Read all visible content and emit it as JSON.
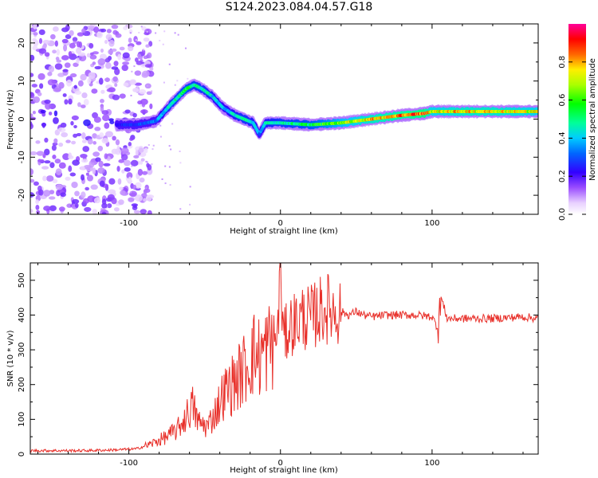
{
  "title": "S124.2023.084.04.57.G18",
  "colors": {
    "snr_line": "#e8302a",
    "axis": "#000000",
    "background": "#ffffff"
  },
  "chart_data": [
    {
      "type": "heatmap",
      "xlabel": "Height of straight line (km)",
      "ylabel": "Frequency (Hz)",
      "xlim": [
        -165,
        170
      ],
      "ylim": [
        -25,
        25
      ],
      "xticks": [
        -100,
        0,
        100
      ],
      "yticks": [
        -20,
        -10,
        0,
        10,
        20
      ],
      "colorbar": {
        "label": "Normalized spectral amplitude",
        "range": [
          0,
          1
        ],
        "ticks": [
          0.0,
          0.2,
          0.4,
          0.6,
          0.8
        ],
        "colormap": "rainbow (white-violet-blue-cyan-green-yellow-red-magenta)"
      },
      "ridge": {
        "description": "dominant Doppler trace",
        "x": [
          -108,
          -95,
          -82,
          -72,
          -62,
          -57,
          -52,
          -45,
          -38,
          -30,
          -24,
          -18,
          -14,
          -10,
          0,
          20,
          40,
          60,
          80,
          95,
          100,
          120,
          140,
          170
        ],
        "y": [
          -1.5,
          -1.5,
          -0.5,
          4,
          8,
          9,
          8,
          6,
          3,
          1,
          0,
          -1,
          -4,
          -1,
          -1,
          -1.5,
          -1,
          0,
          1,
          1.5,
          2,
          2,
          2,
          2
        ],
        "amplitude": [
          0.25,
          0.3,
          0.35,
          0.5,
          0.55,
          0.5,
          0.5,
          0.45,
          0.4,
          0.45,
          0.5,
          0.45,
          0.35,
          0.45,
          0.5,
          0.55,
          0.7,
          0.8,
          0.85,
          0.9,
          0.75,
          0.8,
          0.8,
          0.75
        ]
      },
      "noise_region_x": [
        -165,
        -100
      ]
    },
    {
      "type": "line",
      "xlabel": "Height of straight line (km)",
      "ylabel": "SNR (10 * v/v)",
      "xlim": [
        -165,
        170
      ],
      "ylim": [
        0,
        550
      ],
      "xticks": [
        -100,
        0,
        100
      ],
      "yticks": [
        0,
        100,
        200,
        300,
        400,
        500
      ],
      "series": [
        {
          "x": [
            -165,
            -150,
            -130,
            -110,
            -95,
            -85,
            -75,
            -68,
            -62,
            -58,
            -54,
            -48,
            -42,
            -38,
            -34,
            -30,
            -26,
            -22,
            -18,
            -14,
            -10,
            -6,
            -2,
            0,
            2,
            6,
            10,
            15,
            20,
            25,
            30,
            35,
            40,
            45,
            50,
            55,
            60,
            70,
            80,
            90,
            100,
            104,
            106,
            110,
            120,
            140,
            160,
            170
          ],
          "y": [
            10,
            10,
            10,
            12,
            15,
            30,
            50,
            70,
            110,
            140,
            90,
            80,
            130,
            170,
            190,
            210,
            230,
            260,
            290,
            280,
            300,
            320,
            340,
            550,
            330,
            370,
            380,
            395,
            390,
            410,
            420,
            415,
            410,
            400,
            410,
            400,
            395,
            400,
            400,
            400,
            395,
            360,
            450,
            390,
            390,
            390,
            395,
            390
          ]
        }
      ]
    }
  ]
}
